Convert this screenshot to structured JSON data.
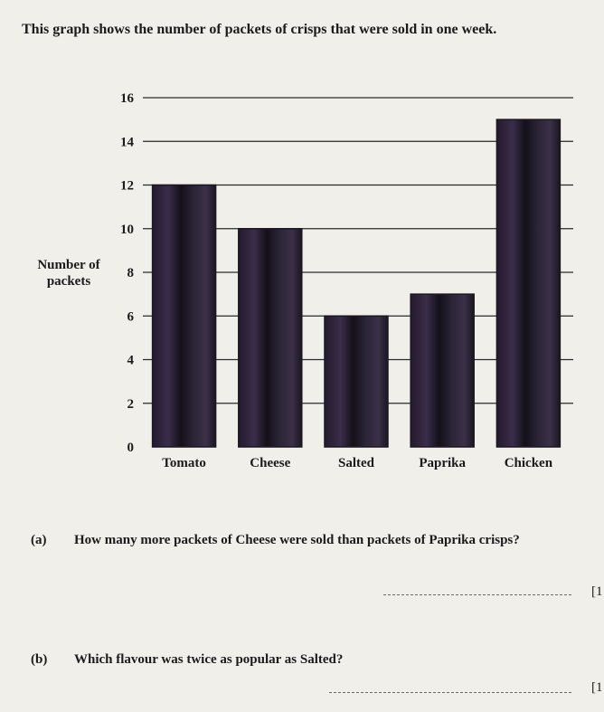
{
  "intro": "This graph shows the number of packets of crisps that were sold in one week.",
  "chart_data": {
    "type": "bar",
    "categories": [
      "Tomato",
      "Cheese",
      "Salted",
      "Paprika",
      "Chicken"
    ],
    "values": [
      12,
      10,
      6,
      7,
      15
    ],
    "ylabel": "Number of packets",
    "ylim": [
      0,
      16
    ],
    "yticks": [
      0,
      2,
      4,
      6,
      8,
      10,
      12,
      14,
      16
    ],
    "grid": true,
    "bar_color": "#1c1722"
  },
  "questions": [
    {
      "letter": "(a)",
      "text": "How many more packets of Cheese were sold than packets of Paprika crisps?",
      "marks": "[1"
    },
    {
      "letter": "(b)",
      "text": "Which flavour was twice as popular as Salted?",
      "marks": "[1"
    }
  ]
}
